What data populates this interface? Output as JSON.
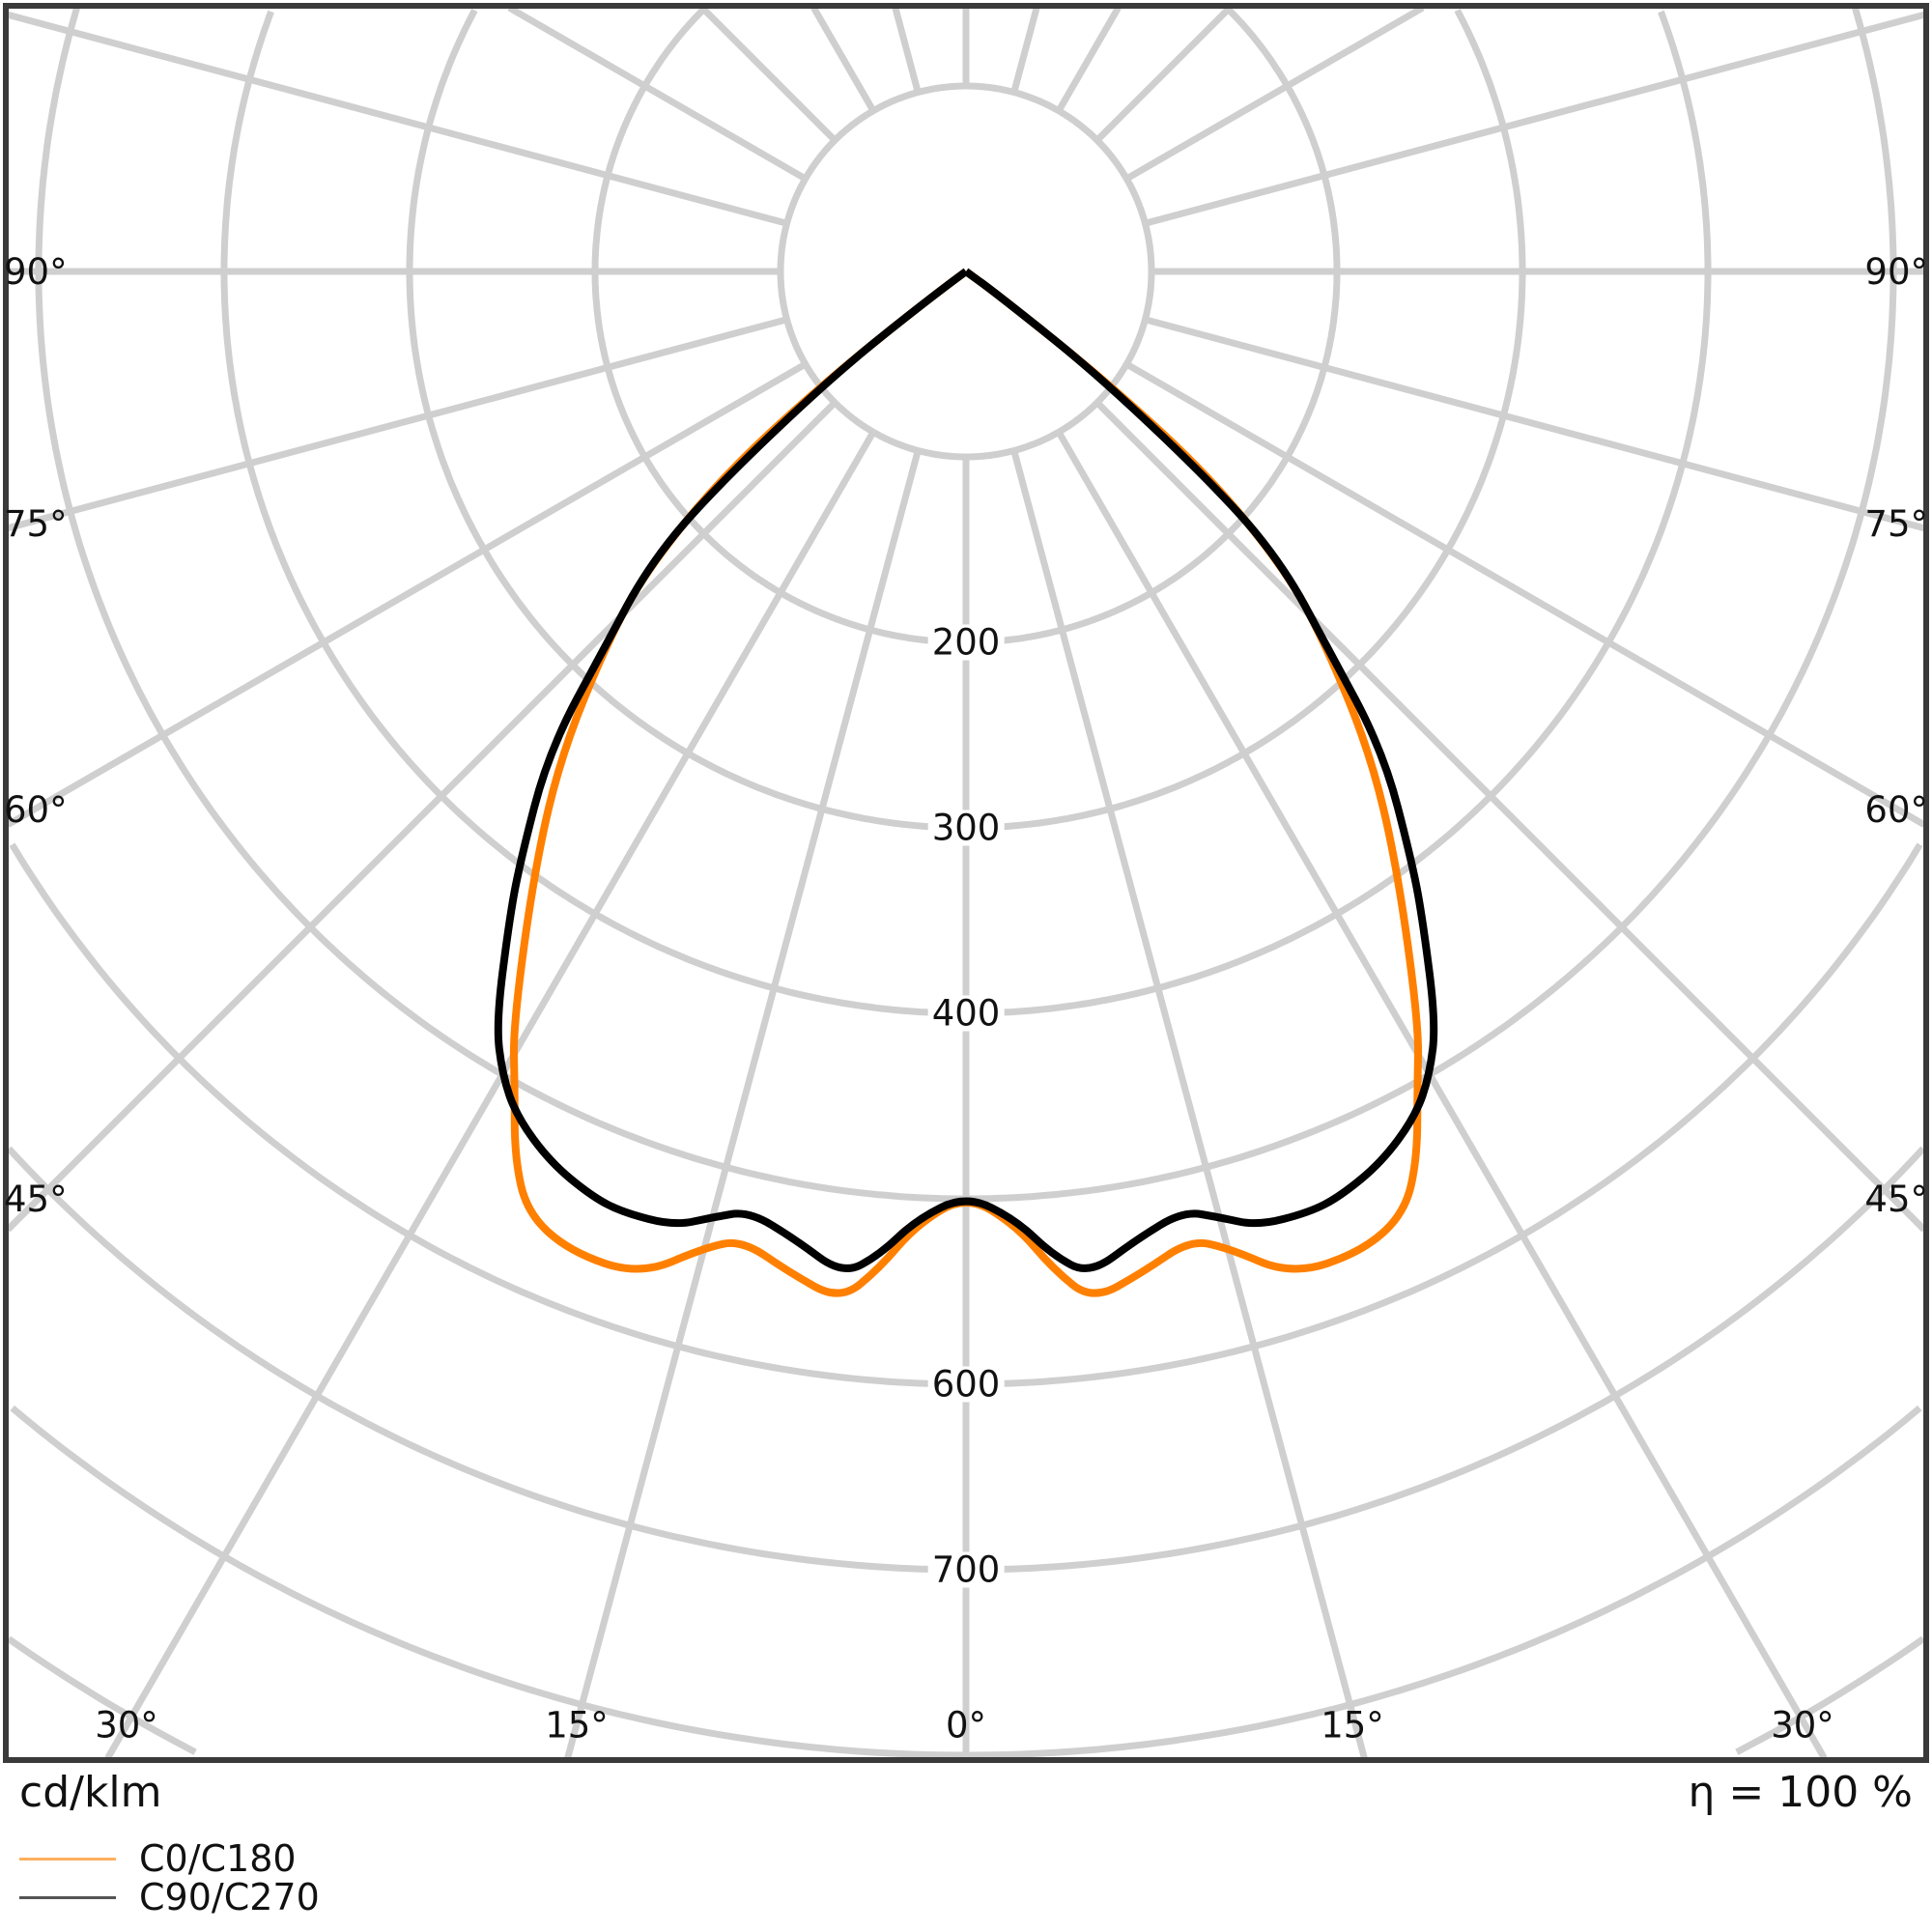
{
  "chart_data": {
    "type": "polar",
    "unit_label": "cd/klm",
    "efficiency_label": "η = 100 %",
    "radial_range": [
      0,
      1000
    ],
    "radial_step": 100,
    "radial_tick_labels": [
      "200",
      "300",
      "400",
      "600",
      "700"
    ],
    "radial_tick_values": [
      200,
      300,
      400,
      600,
      700
    ],
    "angle_labels_sides": [
      "90°",
      "75°",
      "60°",
      "45°"
    ],
    "angle_labels_bottom": [
      "30°",
      "15°",
      "0°",
      "15°",
      "30°"
    ],
    "grid": true,
    "legend_placement": "bottom-left",
    "series": [
      {
        "name": "C0/C180",
        "color": "#ff8000",
        "gamma": [
          0,
          3,
          5,
          7,
          10,
          13,
          15,
          18,
          22,
          25,
          27,
          29,
          31,
          36,
          40,
          44,
          47,
          50,
          52,
          54,
          90
        ],
        "intensity": [
          498,
          515,
          540,
          559,
          548,
          536,
          545,
          569,
          570,
          560,
          536,
          502,
          474,
          395,
          339,
          279,
          235,
          170,
          92,
          20,
          0
        ]
      },
      {
        "name": "C90/C270",
        "color": "#000000",
        "gamma": [
          0,
          3,
          5,
          7,
          10,
          13,
          15,
          17,
          20,
          22,
          25,
          28,
          30,
          32,
          35,
          37,
          41,
          44,
          47,
          49,
          52,
          54,
          90
        ],
        "intensity": [
          498,
          512,
          532,
          545,
          530,
          520,
          528,
          538,
          540,
          538,
          530,
          516,
          500,
          478,
          430,
          400,
          343,
          279,
          235,
          188,
          92,
          20,
          0
        ]
      }
    ]
  }
}
